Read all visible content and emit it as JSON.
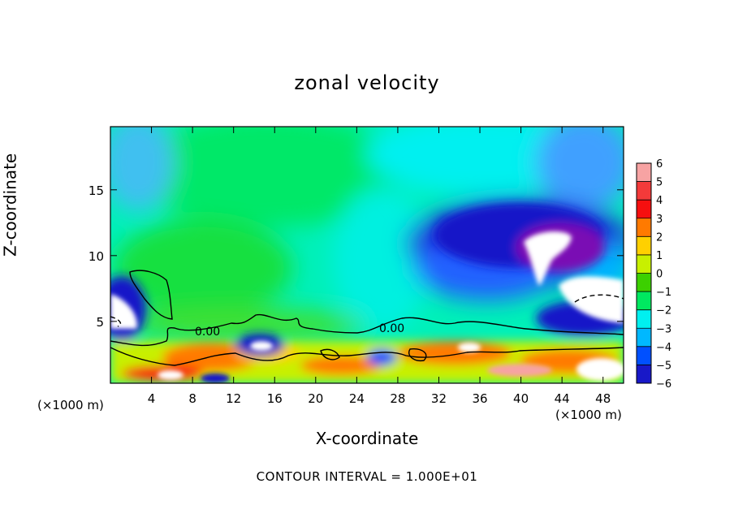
{
  "chart_data": {
    "type": "heatmap",
    "title": "zonal velocity",
    "xlabel": "X-coordinate",
    "ylabel": "Z-coordinate",
    "x_unit_left": "(×1000 m)",
    "x_unit_right": "(×1000 m)",
    "xlim": [
      0,
      50
    ],
    "ylim": [
      0.3,
      19.8
    ],
    "x_ticks": [
      4,
      8,
      12,
      16,
      20,
      24,
      28,
      32,
      36,
      40,
      44,
      48
    ],
    "y_ticks": [
      5,
      10,
      15
    ],
    "colorbar": {
      "levels": [
        6,
        5,
        4,
        3,
        2,
        1,
        0,
        -1,
        -2,
        -3,
        -4,
        -5,
        -6
      ],
      "colors": [
        "#f7a3a3",
        "#f33a3a",
        "#f60f0f",
        "#ff7a00",
        "#ffd000",
        "#c8f000",
        "#3cd000",
        "#00e860",
        "#00f0f0",
        "#00b8ff",
        "#0050ff",
        "#1818c8",
        "#7a0ab4"
      ]
    },
    "contour_labels": [
      {
        "text": "0.00",
        "x": 9.5,
        "y": 4.3
      },
      {
        "text": "0.00",
        "x": 27.5,
        "y": 4.6
      }
    ],
    "footer": "CONTOUR INTERVAL = 1.000E+01"
  }
}
